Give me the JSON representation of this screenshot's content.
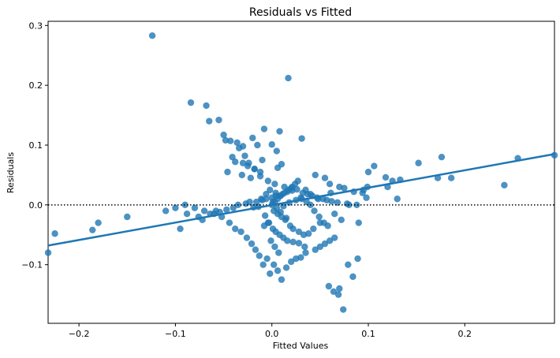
{
  "chart_data": {
    "type": "scatter",
    "title": "Residuals vs Fitted",
    "xlabel": "Fitted Values",
    "ylabel": "Residuals",
    "xlim": [
      -0.232,
      0.293
    ],
    "ylim": [
      -0.198,
      0.307
    ],
    "xticks": [
      {
        "value": -0.2,
        "label": "−0.2"
      },
      {
        "value": -0.1,
        "label": "−0.1"
      },
      {
        "value": 0.0,
        "label": "0.0"
      },
      {
        "value": 0.1,
        "label": "0.1"
      },
      {
        "value": 0.2,
        "label": "0.2"
      }
    ],
    "yticks": [
      {
        "value": -0.1,
        "label": "−0.1"
      },
      {
        "value": 0.0,
        "label": "0.0"
      },
      {
        "value": 0.1,
        "label": "0.1"
      },
      {
        "value": 0.2,
        "label": "0.2"
      },
      {
        "value": 0.3,
        "label": "0.3"
      }
    ],
    "grid": false,
    "point_color": "#1f77b4",
    "reference_line": {
      "y": 0.0,
      "style": "dotted",
      "color": "#000000"
    },
    "trend_line": {
      "x": [
        -0.232,
        0.293
      ],
      "y": [
        -0.068,
        0.085
      ],
      "color": "#1f77b4"
    },
    "points": {
      "x": [
        -0.124,
        0.017,
        -0.084,
        -0.068,
        -0.055,
        -0.065,
        -0.043,
        -0.036,
        0.008,
        -0.008,
        -0.05,
        -0.048,
        0.031,
        -0.02,
        -0.015,
        -0.03,
        0.0,
        0.005,
        -0.034,
        -0.028,
        -0.041,
        -0.038,
        -0.024,
        -0.01,
        0.01,
        -0.018,
        0.006,
        -0.046,
        -0.031,
        -0.022,
        -0.012,
        -0.004,
        0.003,
        0.013,
        0.02,
        0.035,
        0.045,
        0.055,
        0.06,
        0.075,
        0.085,
        0.1,
        0.106,
        0.118,
        0.125,
        0.133,
        0.152,
        0.176,
        0.186,
        0.172,
        0.241,
        0.255,
        0.293,
        0.098,
        0.12,
        0.13,
        0.07,
        0.061,
        0.048,
        0.04,
        0.03,
        0.025,
        0.018,
        0.012,
        0.008,
        0.004,
        -0.002,
        -0.006,
        -0.011,
        -0.016,
        0.002,
        0.006,
        0.01,
        0.014,
        -0.003,
        -0.007,
        0.001,
        0.005,
        0.009,
        0.015,
        0.019,
        0.022,
        0.028,
        0.033,
        0.038,
        0.043,
        0.05,
        0.058,
        0.065,
        0.072,
        0.08,
        0.09,
        -0.001,
        0.003,
        0.007,
        -0.005,
        -0.009,
        -0.013,
        -0.017,
        -0.021,
        -0.026,
        -0.032,
        -0.038,
        -0.044,
        -0.052,
        -0.06,
        -0.07,
        -0.08,
        -0.09,
        -0.1,
        -0.11,
        -0.15,
        -0.18,
        -0.186,
        -0.225,
        -0.232,
        -0.095,
        -0.088,
        -0.076,
        -0.072,
        -0.064,
        -0.058,
        -0.054,
        -0.047,
        -0.04,
        -0.035,
        -0.027,
        -0.023,
        -0.019,
        -0.014,
        -0.01,
        -0.006,
        0.0,
        0.004,
        0.011,
        0.016,
        0.021,
        0.026,
        0.032,
        0.037,
        0.042,
        0.047,
        0.053,
        0.057,
        0.062,
        0.068,
        0.078,
        0.088,
        0.095,
        0.002,
        0.006,
        -0.002,
        0.01,
        0.015,
        0.02,
        0.025,
        0.03,
        0.035,
        0.045,
        0.05,
        0.055,
        0.06,
        0.065,
        0.07,
        -0.004,
        -0.008,
        0.001,
        0.004,
        0.008,
        0.012,
        0.016,
        0.022,
        0.028,
        0.034,
        -0.012,
        -0.018,
        -0.025,
        -0.03,
        0.0,
        0.003,
        0.006,
        0.009,
        0.013,
        0.017,
        0.021,
        0.024,
        0.027,
        0.031,
        0.036,
        0.04,
        0.044,
        0.049,
        0.054,
        0.059,
        0.064,
        0.069,
        0.074,
        0.079,
        0.084,
        0.089,
        0.094,
        0.099
      ],
      "y": [
        0.283,
        0.212,
        0.171,
        0.166,
        0.142,
        0.14,
        0.107,
        0.104,
        0.123,
        0.127,
        0.117,
        0.108,
        0.111,
        0.112,
        0.1,
        0.098,
        0.101,
        0.09,
        0.095,
        0.082,
        0.08,
        0.072,
        0.07,
        0.075,
        0.068,
        0.06,
        0.062,
        0.055,
        0.05,
        0.045,
        0.048,
        0.04,
        0.035,
        0.03,
        0.028,
        0.025,
        0.05,
        0.045,
        0.035,
        0.028,
        0.022,
        0.055,
        0.065,
        0.046,
        0.04,
        0.042,
        0.07,
        0.08,
        0.045,
        0.045,
        0.033,
        0.078,
        0.083,
        0.012,
        0.03,
        0.01,
        0.03,
        0.02,
        0.01,
        0.018,
        0.012,
        0.008,
        0.004,
        -0.002,
        0.015,
        0.02,
        0.025,
        0.018,
        0.01,
        0.005,
        -0.01,
        -0.015,
        -0.02,
        -0.025,
        -0.03,
        -0.018,
        0.005,
        -0.005,
        -0.012,
        -0.022,
        -0.035,
        -0.04,
        -0.045,
        -0.05,
        -0.048,
        -0.04,
        -0.03,
        -0.035,
        -0.015,
        -0.025,
        0.0,
        -0.03,
        -0.06,
        -0.07,
        -0.08,
        -0.09,
        -0.1,
        -0.085,
        -0.075,
        -0.065,
        -0.055,
        -0.045,
        -0.04,
        -0.03,
        -0.02,
        -0.015,
        -0.01,
        -0.005,
        0.0,
        -0.005,
        -0.01,
        -0.02,
        -0.03,
        -0.042,
        -0.048,
        -0.08,
        -0.04,
        -0.015,
        -0.02,
        -0.025,
        -0.015,
        -0.01,
        -0.012,
        -0.008,
        -0.005,
        0.0,
        0.002,
        0.005,
        -0.004,
        -0.003,
        0.008,
        0.01,
        0.012,
        0.015,
        0.018,
        0.022,
        0.024,
        0.026,
        0.02,
        0.018,
        0.015,
        0.012,
        0.01,
        0.008,
        0.006,
        0.004,
        0.002,
        0.0,
        0.025,
        -0.1,
        -0.11,
        -0.115,
        -0.125,
        -0.105,
        -0.095,
        -0.09,
        -0.088,
        -0.08,
        -0.075,
        -0.07,
        -0.065,
        -0.06,
        -0.055,
        -0.14,
        -0.03,
        -0.035,
        -0.04,
        -0.045,
        -0.05,
        -0.055,
        -0.06,
        -0.062,
        -0.064,
        -0.07,
        0.055,
        0.06,
        0.065,
        0.07,
        0.0,
        0.005,
        0.01,
        0.015,
        0.02,
        0.025,
        0.03,
        0.035,
        0.04,
        0.01,
        0.005,
        0.0,
        -0.01,
        -0.02,
        -0.03,
        -0.136,
        -0.145,
        -0.15,
        -0.175,
        -0.1,
        -0.12,
        -0.09,
        0.02,
        0.03
      ]
    }
  }
}
